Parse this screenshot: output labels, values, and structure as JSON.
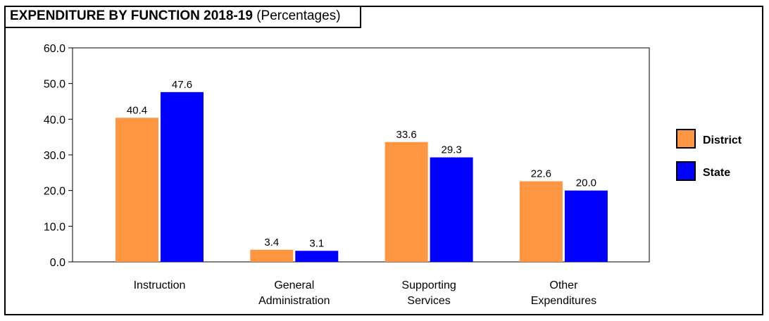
{
  "chart_data": {
    "type": "bar",
    "title": "EXPENDITURE BY FUNCTION 2018-19",
    "subtitle": "(Percentages)",
    "categories": [
      [
        "Instruction"
      ],
      [
        "General",
        "Administration"
      ],
      [
        "Supporting",
        "Services"
      ],
      [
        "Other",
        "Expenditures"
      ]
    ],
    "series": [
      {
        "name": "District",
        "values": [
          40.4,
          3.4,
          33.6,
          22.6
        ],
        "color": "#FF9642"
      },
      {
        "name": "State",
        "values": [
          47.6,
          3.1,
          29.3,
          20.0
        ],
        "color": "#0000FF"
      }
    ],
    "ylim": [
      0,
      60
    ],
    "yticks": [
      "0.0",
      "10.0",
      "20.0",
      "30.0",
      "40.0",
      "50.0",
      "60.0"
    ],
    "legend_position": "right",
    "grid": false
  }
}
